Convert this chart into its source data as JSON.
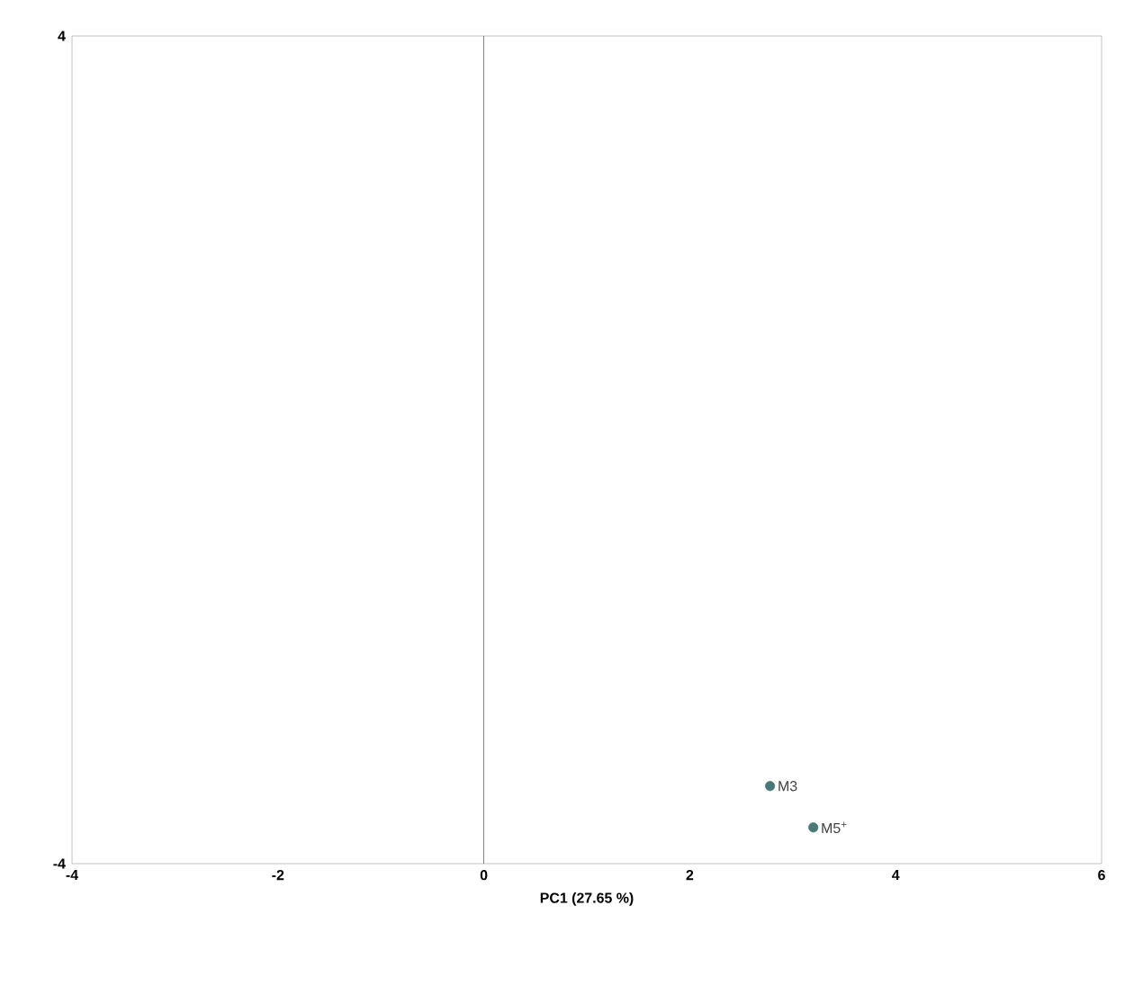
{
  "chart_data": {
    "type": "scatter",
    "xlabel": "PC1 (27.65 %)",
    "x": [
      2.78,
      3.2
    ],
    "values": [
      -3.25,
      -3.65
    ],
    "color": "#4a7878",
    "marker": "circle",
    "xlim": [
      -4,
      6
    ],
    "ylim": [
      -4,
      4
    ],
    "xticks": [
      -4,
      -2,
      0,
      2,
      4,
      6
    ],
    "yticks": [
      -4,
      4
    ],
    "ref_lines": [
      {
        "axis": "x",
        "value": 0,
        "color": "#555555"
      }
    ],
    "annotations": [
      {
        "text": "M3",
        "x": 2.78,
        "y": -3.25
      },
      {
        "text": "M5$^{+}$",
        "x": 3.2,
        "y": -3.65
      }
    ],
    "grid": false
  }
}
